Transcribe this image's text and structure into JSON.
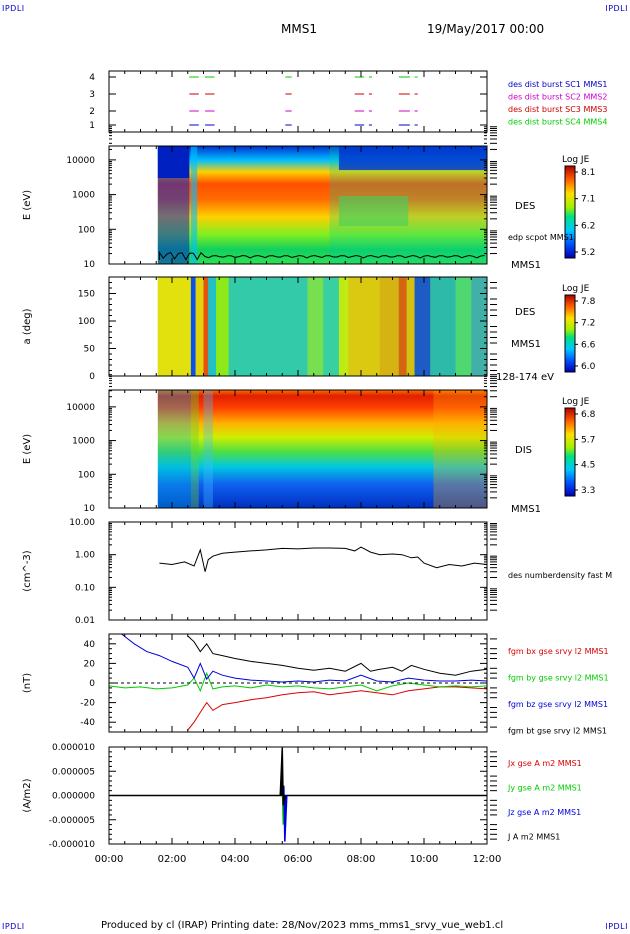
{
  "corner_label": "IPDLI",
  "header": {
    "title": "MMS1",
    "date": "19/May/2017 00:00"
  },
  "footer": {
    "text": "Produced by cl (IRAP)   Printing date: 28/Nov/2023   mms_mms1_srvy_vue_web1.cl"
  },
  "time_axis": {
    "ticks": [
      "00:00",
      "02:00",
      "04:00",
      "06:00",
      "08:00",
      "10:00",
      "12:00"
    ]
  },
  "chart_data": [
    {
      "type": "scatter",
      "name": "burst-availability",
      "x_range": [
        0,
        12
      ],
      "yticks": [
        "1",
        "2",
        "3",
        "4"
      ],
      "legend": [
        {
          "label": "des dist burst SC1 MMS1",
          "color": "#0000cc"
        },
        {
          "label": "des dist burst SC2 MMS2",
          "color": "#cc00cc"
        },
        {
          "label": "des dist burst SC3 MMS3",
          "color": "#cc0000"
        },
        {
          "label": "des dist burst SC4 MMS4",
          "color": "#00cc00"
        }
      ],
      "intervals_hours": [
        [
          2.55,
          2.85
        ],
        [
          3.05,
          3.35
        ],
        [
          5.6,
          5.8
        ],
        [
          7.8,
          8.1
        ],
        [
          8.25,
          8.35
        ],
        [
          9.2,
          9.55
        ],
        [
          9.7,
          9.8
        ]
      ]
    },
    {
      "type": "heatmap",
      "name": "des-energy-spectrogram",
      "ylabel": "E (eV)",
      "yticks": [
        "10",
        "100",
        "1000",
        "10000"
      ],
      "right_labels": [
        "DES",
        "edp scpot MMS1",
        "MMS1"
      ],
      "colorbar": {
        "title": "Log JE",
        "ticks": [
          "8.1",
          "7.1",
          "6.2",
          "5.2"
        ]
      }
    },
    {
      "type": "heatmap",
      "name": "des-pitch-angle",
      "ylabel": "a (deg)",
      "yticks": [
        "0",
        "50",
        "100",
        "150"
      ],
      "right_labels": [
        "DES",
        "MMS1",
        "128-174 eV"
      ],
      "colorbar": {
        "title": "Log JE",
        "ticks": [
          "7.8",
          "7.2",
          "6.6",
          "6.0"
        ]
      }
    },
    {
      "type": "heatmap",
      "name": "dis-energy-spectrogram",
      "ylabel": "E (eV)",
      "yticks": [
        "10",
        "100",
        "1000",
        "10000"
      ],
      "right_labels": [
        "DIS",
        "MMS1"
      ],
      "colorbar": {
        "title": "Log JE",
        "ticks": [
          "6.8",
          "5.7",
          "4.5",
          "3.3"
        ]
      }
    },
    {
      "type": "line",
      "name": "density",
      "ylabel": "(cm^-3)",
      "yticks": [
        "0.01",
        "0.10",
        "1.00",
        "10.00"
      ],
      "ylim_log": [
        0.01,
        10
      ],
      "series": [
        {
          "name": "des numberdensity fast M",
          "color": "#000000",
          "x": [
            1.6,
            2.0,
            2.4,
            2.7,
            2.9,
            3.05,
            3.15,
            3.3,
            3.6,
            4.0,
            4.5,
            5.0,
            5.5,
            6.0,
            6.5,
            7.0,
            7.5,
            7.8,
            8.0,
            8.3,
            8.6,
            9.0,
            9.3,
            9.6,
            9.8,
            10.0,
            10.4,
            10.8,
            11.2,
            11.6,
            12.0
          ],
          "y": [
            0.55,
            0.5,
            0.6,
            0.45,
            1.4,
            0.3,
            0.7,
            0.9,
            1.1,
            1.2,
            1.3,
            1.4,
            1.55,
            1.5,
            1.6,
            1.6,
            1.55,
            1.3,
            1.7,
            1.2,
            1.0,
            1.05,
            1.0,
            0.8,
            0.85,
            0.55,
            0.4,
            0.5,
            0.45,
            0.55,
            0.5
          ]
        }
      ]
    },
    {
      "type": "line",
      "name": "magnetic-field",
      "ylabel": "(nT)",
      "yticks": [
        "-40",
        "-20",
        "0",
        "20",
        "40"
      ],
      "ylim": [
        -50,
        50
      ],
      "series": [
        {
          "name": "fgm bx gse srvy l2 MMS1",
          "color": "#dd0000",
          "x": [
            2.5,
            2.7,
            2.9,
            3.1,
            3.3,
            3.6,
            4.0,
            4.5,
            5.0,
            5.5,
            6.0,
            6.5,
            7.0,
            7.5,
            8.0,
            8.5,
            9.0,
            9.5,
            10.0,
            10.5,
            11.0,
            11.5,
            12.0
          ],
          "y": [
            -48,
            -40,
            -30,
            -20,
            -28,
            -22,
            -20,
            -17,
            -15,
            -12,
            -10,
            -9,
            -12,
            -10,
            -8,
            -10,
            -12,
            -8,
            -6,
            -4,
            -4,
            -5,
            -6
          ]
        },
        {
          "name": "fgm by gse srvy l2 MMS1",
          "color": "#00cc00",
          "x": [
            0,
            0.5,
            1.0,
            1.5,
            2.0,
            2.5,
            2.7,
            2.9,
            3.1,
            3.3,
            3.6,
            4.0,
            4.5,
            5.0,
            5.5,
            6.0,
            6.5,
            7.0,
            7.5,
            8.0,
            8.5,
            9.0,
            9.5,
            10.0,
            10.5,
            11.0,
            11.5,
            12.0
          ],
          "y": [
            -3,
            -5,
            -4,
            -6,
            -5,
            -2,
            5,
            -8,
            10,
            -6,
            -4,
            -3,
            -5,
            -2,
            -4,
            -3,
            -5,
            -6,
            -4,
            -2,
            -8,
            -3,
            0,
            -2,
            -4,
            -3,
            -4,
            -3
          ]
        },
        {
          "name": "fgm bz gse srvy l2 MMS1",
          "color": "#0000dd",
          "x": [
            0.4,
            0.8,
            1.2,
            1.6,
            2.0,
            2.5,
            2.7,
            2.9,
            3.1,
            3.3,
            3.6,
            4.0,
            4.5,
            5.0,
            5.5,
            6.0,
            6.5,
            7.0,
            7.5,
            8.0,
            8.5,
            9.0,
            9.5,
            10.0,
            10.5,
            11.0,
            11.5,
            12.0
          ],
          "y": [
            50,
            40,
            32,
            28,
            22,
            16,
            5,
            20,
            4,
            12,
            8,
            5,
            3,
            2,
            1,
            2,
            1,
            3,
            2,
            8,
            2,
            1,
            5,
            3,
            2,
            2,
            3,
            2
          ]
        },
        {
          "name": "fgm bt gse srvy l2 MMS1",
          "color": "#000000",
          "x": [
            2.5,
            2.7,
            2.9,
            3.1,
            3.3,
            3.6,
            4.0,
            4.5,
            5.0,
            5.5,
            6.0,
            6.5,
            7.0,
            7.5,
            8.0,
            8.3,
            8.6,
            9.0,
            9.3,
            9.6,
            10.0,
            10.5,
            11.0,
            11.5,
            12.0
          ],
          "y": [
            48,
            42,
            32,
            40,
            30,
            28,
            25,
            22,
            20,
            18,
            15,
            13,
            15,
            12,
            20,
            12,
            14,
            16,
            12,
            18,
            14,
            10,
            8,
            12,
            14
          ]
        }
      ]
    },
    {
      "type": "line",
      "name": "current-density",
      "ylabel": "(A/m2)",
      "yticks": [
        "-0.000010",
        "-0.000005",
        "0.000000",
        "0.000005",
        "0.000010"
      ],
      "ylim": [
        -1e-05,
        1e-05
      ],
      "series": [
        {
          "name": "Jx gse A m2 MMS1",
          "color": "#dd0000",
          "spike_x": 5.5,
          "spike_min": -4e-06,
          "spike_max": 3e-06
        },
        {
          "name": "Jy gse A m2 MMS1",
          "color": "#00cc00",
          "spike_x": 5.5,
          "spike_min": -6e-06,
          "spike_max": 4e-06
        },
        {
          "name": "Jz gse A m2 MMS1",
          "color": "#0000dd",
          "spike_x": 5.55,
          "spike_min": -9.5e-06,
          "spike_max": 2e-06
        },
        {
          "name": "J A m2 MMS1",
          "color": "#000000",
          "spike_x": 5.5,
          "spike_min": -2e-06,
          "spike_max": 9.8e-06
        }
      ]
    }
  ]
}
